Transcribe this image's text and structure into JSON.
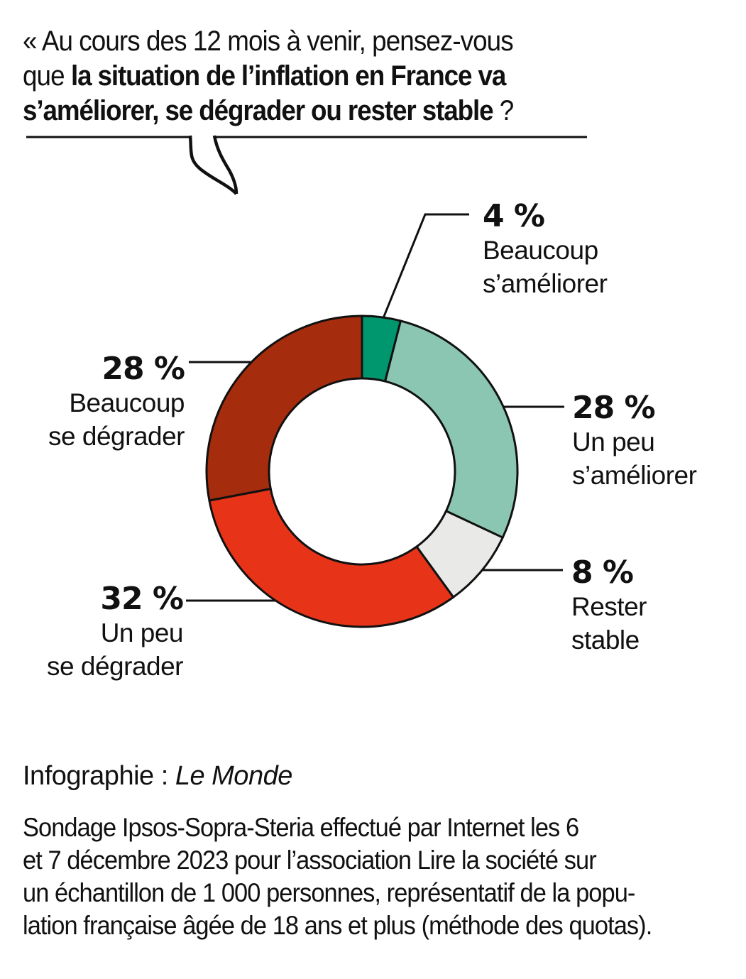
{
  "question": {
    "line1": "« Au cours des 12 mois à venir, pensez-vous",
    "line2_prefix": "que ",
    "line2_bold": "la situation de l’inflation en France va",
    "line3_bold": "s’améliorer, se dégrader ou rester stable",
    "line3_suffix": " ?"
  },
  "chart_data": {
    "type": "pie",
    "donut": true,
    "title": "Au cours des 12 mois à venir, pensez-vous que la situation de l’inflation en France va s’améliorer, se dégrader ou rester stable ?",
    "unit": "%",
    "start_angle_deg": 0,
    "direction": "clockwise",
    "legend_position": "callouts",
    "segments": [
      {
        "label": "Beaucoup s’améliorer",
        "value": 4,
        "color": "#00966E"
      },
      {
        "label": "Un peu s’améliorer",
        "value": 28,
        "color": "#8AC6B1"
      },
      {
        "label": "Rester stable",
        "value": 8,
        "color": "#E9E9E7"
      },
      {
        "label": "Un peu se dégrader",
        "value": 32,
        "color": "#E73418"
      },
      {
        "label": "Beaucoup se dégrader",
        "value": 28,
        "color": "#A62C0E"
      }
    ]
  },
  "callouts": {
    "improve_much": {
      "pct": "4 %",
      "line1": "Beaucoup",
      "line2": "s’améliorer"
    },
    "improve_little": {
      "pct": "28 %",
      "line1": "Un peu",
      "line2": "s’améliorer"
    },
    "stable": {
      "pct": "8 %",
      "line1": "Rester",
      "line2": "stable"
    },
    "degrade_much": {
      "pct": "28 %",
      "line1": "Beaucoup",
      "line2": "se dégrader"
    },
    "degrade_little": {
      "pct": "32 %",
      "line1": "Un peu",
      "line2": "se dégrader"
    }
  },
  "footer": {
    "credit_prefix": "Infographie : ",
    "credit_source": "Le Monde",
    "methodology": [
      "Sondage Ipsos-Sopra-Steria effectué par Internet les 6",
      "et 7 décembre 2023 pour l’association Lire la société sur",
      "un échantillon de 1 000 personnes, représentatif de la popu-",
      "lation française âgée de 18 ans et plus (méthode des quotas)."
    ]
  },
  "colors": {
    "ink": "#111111"
  }
}
